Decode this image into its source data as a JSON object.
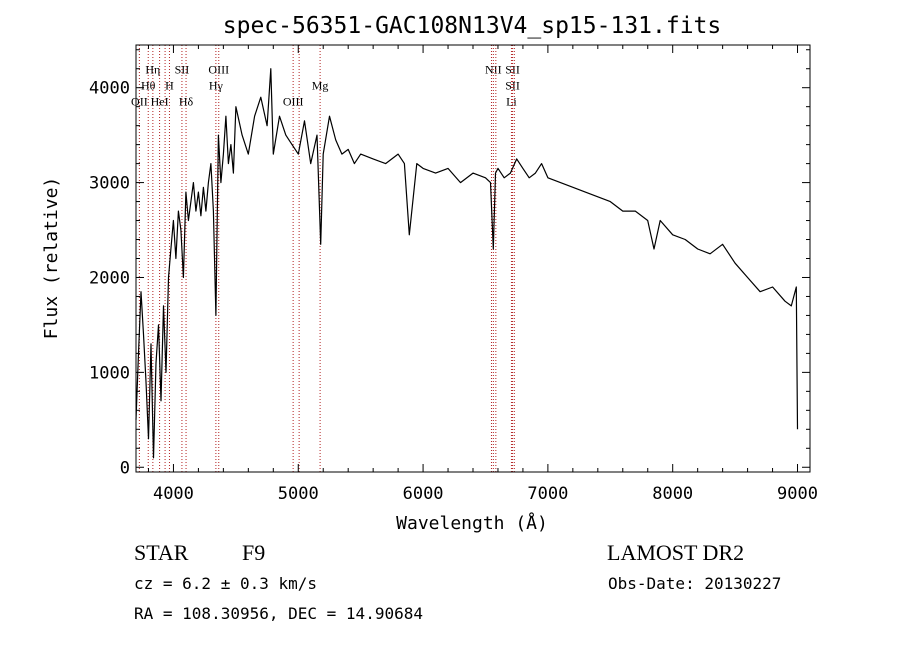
{
  "chart_data": {
    "type": "line",
    "title": "spec-56351-GAC108N13V4_sp15-131.fits",
    "xlabel": "Wavelength (Å)",
    "ylabel": "Flux (relative)",
    "xlim": [
      3700,
      9100
    ],
    "ylim": [
      -50,
      4450
    ],
    "grid": false,
    "x_ticks": [
      {
        "value": 4000,
        "label": "4000"
      },
      {
        "value": 5000,
        "label": "5000"
      },
      {
        "value": 6000,
        "label": "6000"
      },
      {
        "value": 7000,
        "label": "7000"
      },
      {
        "value": 8000,
        "label": "8000"
      },
      {
        "value": 9000,
        "label": "9000"
      }
    ],
    "y_ticks": [
      {
        "value": 0,
        "label": "0"
      },
      {
        "value": 1000,
        "label": "1000"
      },
      {
        "value": 2000,
        "label": "2000"
      },
      {
        "value": 3000,
        "label": "3000"
      },
      {
        "value": 4000,
        "label": "4000"
      }
    ],
    "series": [
      {
        "color": "#000000",
        "x": [
          3700,
          3720,
          3740,
          3760,
          3780,
          3800,
          3820,
          3840,
          3860,
          3880,
          3900,
          3920,
          3940,
          3960,
          3980,
          4000,
          4020,
          4040,
          4060,
          4080,
          4100,
          4120,
          4140,
          4160,
          4180,
          4200,
          4220,
          4240,
          4260,
          4280,
          4300,
          4320,
          4340,
          4360,
          4380,
          4400,
          4420,
          4440,
          4460,
          4480,
          4500,
          4550,
          4600,
          4650,
          4700,
          4750,
          4780,
          4800,
          4850,
          4900,
          4950,
          5000,
          5050,
          5100,
          5150,
          5180,
          5200,
          5250,
          5300,
          5350,
          5400,
          5450,
          5500,
          5600,
          5700,
          5800,
          5850,
          5890,
          5950,
          6000,
          6100,
          6200,
          6300,
          6400,
          6500,
          6540,
          6563,
          6580,
          6600,
          6650,
          6700,
          6750,
          6800,
          6850,
          6900,
          6950,
          7000,
          7100,
          7200,
          7300,
          7400,
          7500,
          7600,
          7700,
          7800,
          7850,
          7900,
          8000,
          8100,
          8200,
          8300,
          8400,
          8500,
          8600,
          8700,
          8800,
          8900,
          8950,
          8990,
          9000
        ],
        "y": [
          500,
          1200,
          1850,
          1400,
          900,
          300,
          1300,
          100,
          1100,
          1500,
          700,
          1700,
          1000,
          2000,
          2300,
          2600,
          2200,
          2700,
          2500,
          2000,
          2900,
          2600,
          2800,
          3000,
          2700,
          2900,
          2650,
          2950,
          2700,
          3000,
          3200,
          2700,
          1600,
          3500,
          3000,
          3300,
          3700,
          3200,
          3400,
          3100,
          3800,
          3500,
          3300,
          3700,
          3900,
          3600,
          4200,
          3300,
          3700,
          3500,
          3400,
          3300,
          3650,
          3200,
          3500,
          2350,
          3300,
          3700,
          3450,
          3300,
          3350,
          3200,
          3300,
          3250,
          3200,
          3300,
          3200,
          2450,
          3200,
          3150,
          3100,
          3150,
          3000,
          3100,
          3050,
          3000,
          2300,
          3100,
          3150,
          3050,
          3100,
          3250,
          3150,
          3050,
          3100,
          3200,
          3050,
          3000,
          2950,
          2900,
          2850,
          2800,
          2700,
          2700,
          2600,
          2300,
          2600,
          2450,
          2400,
          2300,
          2250,
          2350,
          2150,
          2000,
          1850,
          1900,
          1750,
          1700,
          1900,
          400
        ]
      }
    ],
    "line_markers": [
      {
        "x": 3727,
        "labels": [
          "OII"
        ],
        "label_ys": [
          3810
        ]
      },
      {
        "x": 3798,
        "labels": [
          "Hθ"
        ],
        "label_ys": [
          3980
        ]
      },
      {
        "x": 3835,
        "labels": [
          "Hη"
        ],
        "label_ys": [
          4150
        ]
      },
      {
        "x": 3889,
        "labels": [
          "HeI"
        ],
        "label_ys": [
          3810
        ]
      },
      {
        "x": 3933,
        "labels": [],
        "label_ys": []
      },
      {
        "x": 3968,
        "labels": [
          "H"
        ],
        "label_ys": [
          3980
        ]
      },
      {
        "x": 4068,
        "labels": [
          "SII"
        ],
        "label_ys": [
          4150
        ]
      },
      {
        "x": 4101,
        "labels": [
          "Hδ"
        ],
        "label_ys": [
          3810
        ]
      },
      {
        "x": 4340,
        "labels": [
          "Hγ"
        ],
        "label_ys": [
          3980
        ]
      },
      {
        "x": 4363,
        "labels": [
          "OIII"
        ],
        "label_ys": [
          4150
        ]
      },
      {
        "x": 4959,
        "labels": [
          "OIII"
        ],
        "label_ys": [
          3810
        ]
      },
      {
        "x": 5007,
        "labels": [],
        "label_ys": []
      },
      {
        "x": 5175,
        "labels": [
          "Mg"
        ],
        "label_ys": [
          3980
        ]
      },
      {
        "x": 6548,
        "labels": [],
        "label_ys": []
      },
      {
        "x": 6563,
        "labels": [
          "NII"
        ],
        "label_ys": [
          4150
        ]
      },
      {
        "x": 6583,
        "labels": [],
        "label_ys": []
      },
      {
        "x": 6708,
        "labels": [
          "Li"
        ],
        "label_ys": [
          3810
        ]
      },
      {
        "x": 6717,
        "labels": [
          "SII",
          "SII"
        ],
        "label_ys": [
          4150,
          3980
        ]
      },
      {
        "x": 6731,
        "labels": [],
        "label_ys": []
      }
    ]
  },
  "info": {
    "object_class": "STAR",
    "subclass": "F9",
    "survey": "LAMOST DR2",
    "cz": "cz = 6.2 ± 0.3 km/s",
    "obs_date": "Obs-Date: 20130227",
    "radec": "RA = 108.30956, DEC =  14.90684"
  }
}
